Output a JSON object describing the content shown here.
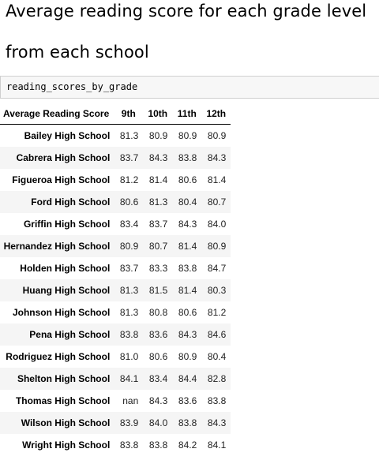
{
  "heading": {
    "line1": "Average reading score for each grade level",
    "line2": "from each school"
  },
  "code_cell": {
    "text": "reading_scores_by_grade"
  },
  "table": {
    "index_header": "Average Reading Score",
    "columns": [
      "9th",
      "10th",
      "11th",
      "12th"
    ],
    "rows": [
      {
        "school": "Bailey High School",
        "values": [
          "81.3",
          "80.9",
          "80.9",
          "80.9"
        ]
      },
      {
        "school": "Cabrera High School",
        "values": [
          "83.7",
          "84.3",
          "83.8",
          "84.3"
        ]
      },
      {
        "school": "Figueroa High School",
        "values": [
          "81.2",
          "81.4",
          "80.6",
          "81.4"
        ]
      },
      {
        "school": "Ford High School",
        "values": [
          "80.6",
          "81.3",
          "80.4",
          "80.7"
        ]
      },
      {
        "school": "Griffin High School",
        "values": [
          "83.4",
          "83.7",
          "84.3",
          "84.0"
        ]
      },
      {
        "school": "Hernandez High School",
        "values": [
          "80.9",
          "80.7",
          "81.4",
          "80.9"
        ]
      },
      {
        "school": "Holden High School",
        "values": [
          "83.7",
          "83.3",
          "83.8",
          "84.7"
        ]
      },
      {
        "school": "Huang High School",
        "values": [
          "81.3",
          "81.5",
          "81.4",
          "80.3"
        ]
      },
      {
        "school": "Johnson High School",
        "values": [
          "81.3",
          "80.8",
          "80.6",
          "81.2"
        ]
      },
      {
        "school": "Pena High School",
        "values": [
          "83.8",
          "83.6",
          "84.3",
          "84.6"
        ]
      },
      {
        "school": "Rodriguez High School",
        "values": [
          "81.0",
          "80.6",
          "80.9",
          "80.4"
        ]
      },
      {
        "school": "Shelton High School",
        "values": [
          "84.1",
          "83.4",
          "84.4",
          "82.8"
        ]
      },
      {
        "school": "Thomas High School",
        "values": [
          "nan",
          "84.3",
          "83.6",
          "83.8"
        ]
      },
      {
        "school": "Wilson High School",
        "values": [
          "83.9",
          "84.0",
          "83.8",
          "84.3"
        ]
      },
      {
        "school": "Wright High School",
        "values": [
          "83.8",
          "83.8",
          "84.2",
          "84.1"
        ]
      }
    ]
  }
}
